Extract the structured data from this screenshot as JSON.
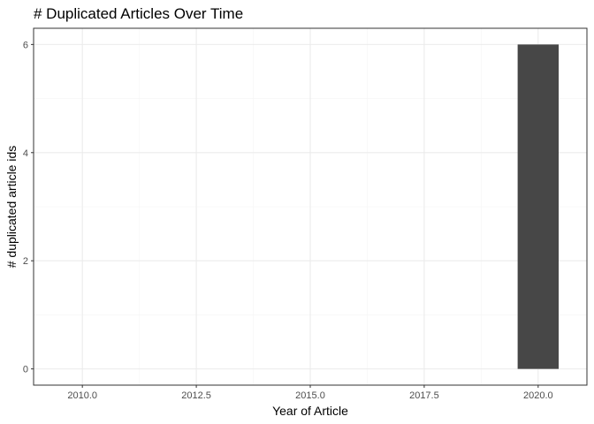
{
  "chart_data": {
    "type": "bar",
    "title": "# Duplicated Articles Over Time",
    "xlabel": "Year of Article",
    "ylabel": "# duplicated article ids",
    "x": [
      2020
    ],
    "values": [
      6
    ],
    "xlim": [
      2008.93,
      2021.07
    ],
    "ylim": [
      -0.3,
      6.3
    ],
    "x_ticks": [
      2010,
      2012.5,
      2015,
      2017.5,
      2020
    ],
    "x_tick_labels": [
      "2010.0",
      "2012.5",
      "2015.0",
      "2017.5",
      "2020.0"
    ],
    "y_ticks": [
      0,
      2,
      4,
      6
    ],
    "y_tick_labels": [
      "0",
      "2",
      "4",
      "6"
    ],
    "bar_width_years": 0.9,
    "grid": true,
    "legend": "none",
    "colors": {
      "bar": "#474747",
      "panel_border": "#333333",
      "grid_major": "#ebebeb",
      "grid_minor": "#f5f5f5",
      "tick_text": "#4d4d4d"
    }
  }
}
